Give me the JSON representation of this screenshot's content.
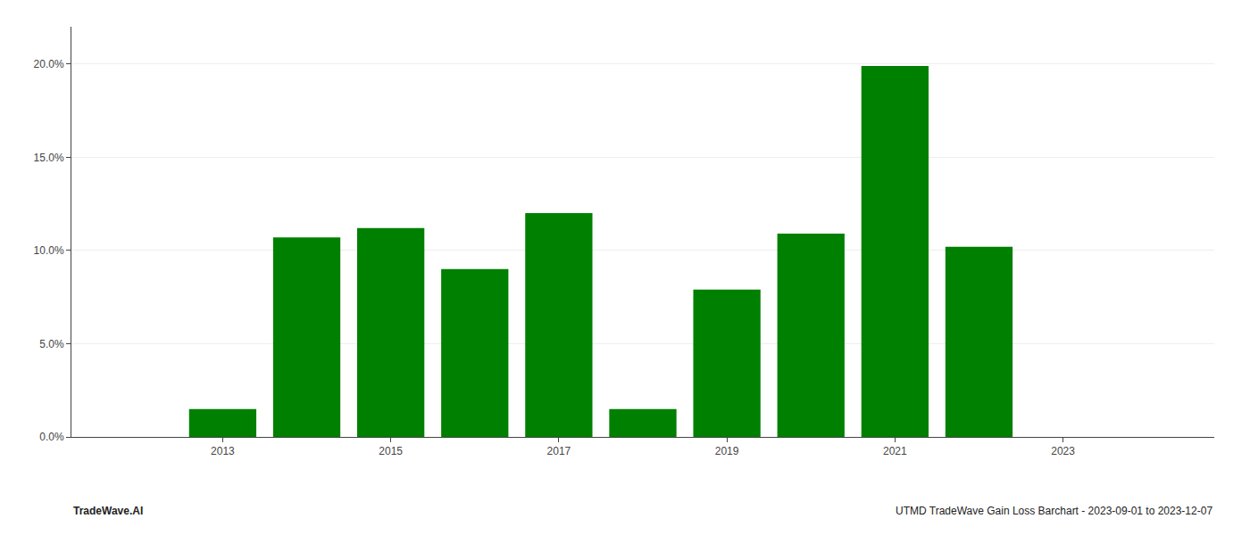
{
  "chart_data": {
    "type": "bar",
    "x": [
      2013,
      2014,
      2015,
      2016,
      2017,
      2018,
      2019,
      2020,
      2021,
      2022,
      2023
    ],
    "values": [
      0.015,
      0.107,
      0.112,
      0.09,
      0.12,
      0.015,
      0.079,
      0.109,
      0.199,
      0.102,
      0.0
    ],
    "color": "#008000",
    "xlim": [
      2011.2,
      2024.8
    ],
    "xticks": [
      2013,
      2015,
      2017,
      2019,
      2021,
      2023
    ],
    "ylim": [
      0,
      0.22
    ],
    "yticks": [
      {
        "value": 0.0,
        "label": "0.0%"
      },
      {
        "value": 0.05,
        "label": "5.0%"
      },
      {
        "value": 0.1,
        "label": "10.0%"
      },
      {
        "value": 0.15,
        "label": "15.0%"
      },
      {
        "value": 0.2,
        "label": "20.0%"
      }
    ],
    "grid": true,
    "annotations": [
      "TradeWave.AI",
      "UTMD TradeWave Gain Loss Barchart - 2023-09-01 to 2023-12-07"
    ]
  }
}
